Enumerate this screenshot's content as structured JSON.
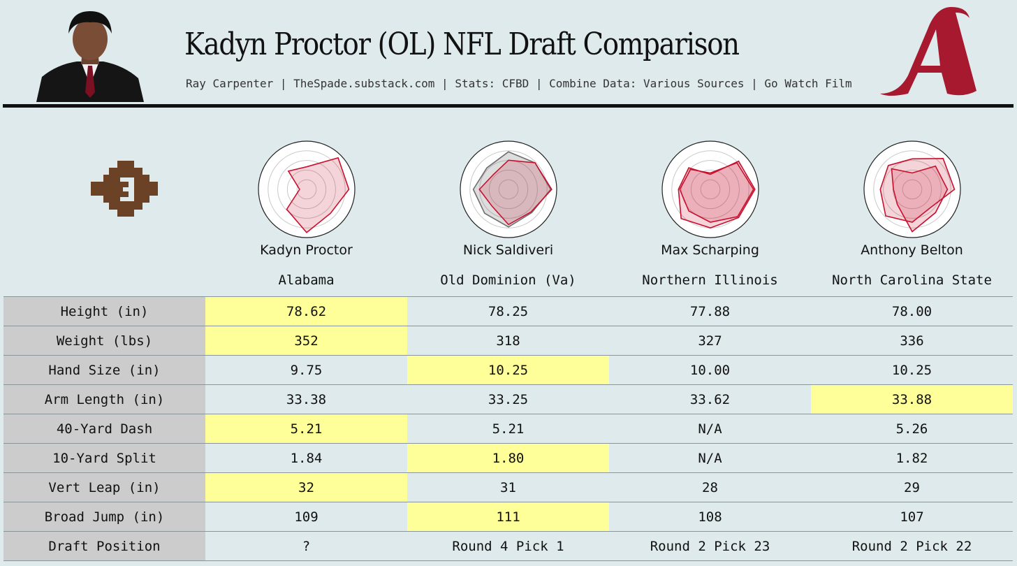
{
  "header": {
    "title": "Kadyn Proctor (OL) NFL Draft Comparison",
    "subtitle": "Ray Carpenter | TheSpade.substack.com | Stats: CFBD | Combine Data: Various Sources | Go Watch Film"
  },
  "colors": {
    "background": "#dfeaec",
    "highlight": "#ffff99",
    "label_bg": "#cccccc",
    "accent": "#c8102e",
    "compare_gray": "#7a7a7a"
  },
  "players": [
    {
      "name": "Kadyn Proctor",
      "school": "Alabama"
    },
    {
      "name": "Nick Saldiveri",
      "school": "Old Dominion (Va)"
    },
    {
      "name": "Max Scharping",
      "school": "Northern Illinois"
    },
    {
      "name": "Anthony Belton",
      "school": "North Carolina State"
    }
  ],
  "chart_data": {
    "type": "table",
    "columns": [
      "Kadyn Proctor",
      "Nick Saldiveri",
      "Max Scharping",
      "Anthony Belton"
    ],
    "rows": [
      {
        "label": "Height (in)",
        "values": [
          "78.62",
          "78.25",
          "77.88",
          "78.00"
        ],
        "best": 0
      },
      {
        "label": "Weight (lbs)",
        "values": [
          "352",
          "318",
          "327",
          "336"
        ],
        "best": 0
      },
      {
        "label": "Hand Size (in)",
        "values": [
          "9.75",
          "10.25",
          "10.00",
          "10.25"
        ],
        "best": 1
      },
      {
        "label": "Arm Length (in)",
        "values": [
          "33.38",
          "33.25",
          "33.62",
          "33.88"
        ],
        "best": 3
      },
      {
        "label": "40-Yard Dash",
        "values": [
          "5.21",
          "5.21",
          "N/A",
          "5.26"
        ],
        "best": 0
      },
      {
        "label": "10-Yard Split",
        "values": [
          "1.84",
          "1.80",
          "N/A",
          "1.82"
        ],
        "best": 1
      },
      {
        "label": "Vert Leap (in)",
        "values": [
          "32",
          "31",
          "28",
          "29"
        ],
        "best": 0
      },
      {
        "label": "Broad Jump (in)",
        "values": [
          "109",
          "111",
          "108",
          "107"
        ],
        "best": 1
      },
      {
        "label": "Draft Position",
        "values": [
          "?",
          "Round 4 Pick 1",
          "Round 2 Pick 23",
          "Round 2 Pick 22"
        ],
        "best": -1
      }
    ],
    "radars": [
      {
        "series": [
          {
            "values": [
              0.48,
              0.95,
              0.9,
              0.72,
              0.92,
              0.6,
              0.15,
              0.55
            ]
          }
        ]
      },
      {
        "series": [
          {
            "values": [
              0.8,
              0.8,
              0.9,
              0.7,
              0.8,
              0.72,
              0.75,
              0.65
            ],
            "gray": true
          },
          {
            "values": [
              0.62,
              0.8,
              0.92,
              0.68,
              0.75,
              0.5,
              0.62,
              0.45
            ]
          }
        ]
      },
      {
        "series": [
          {
            "values": [
              0.32,
              0.85,
              0.95,
              0.85,
              0.82,
              0.88,
              0.68,
              0.65
            ]
          },
          {
            "values": [
              0.35,
              0.8,
              0.92,
              0.82,
              0.7,
              0.65,
              0.65,
              0.6
            ]
          }
        ]
      },
      {
        "series": [
          {
            "values": [
              0.65,
              0.93,
              0.9,
              0.55,
              0.7,
              0.8,
              0.68,
              0.72
            ]
          },
          {
            "values": [
              0.35,
              0.7,
              0.75,
              0.7,
              0.9,
              0.45,
              0.4,
              0.62
            ]
          }
        ]
      }
    ]
  }
}
